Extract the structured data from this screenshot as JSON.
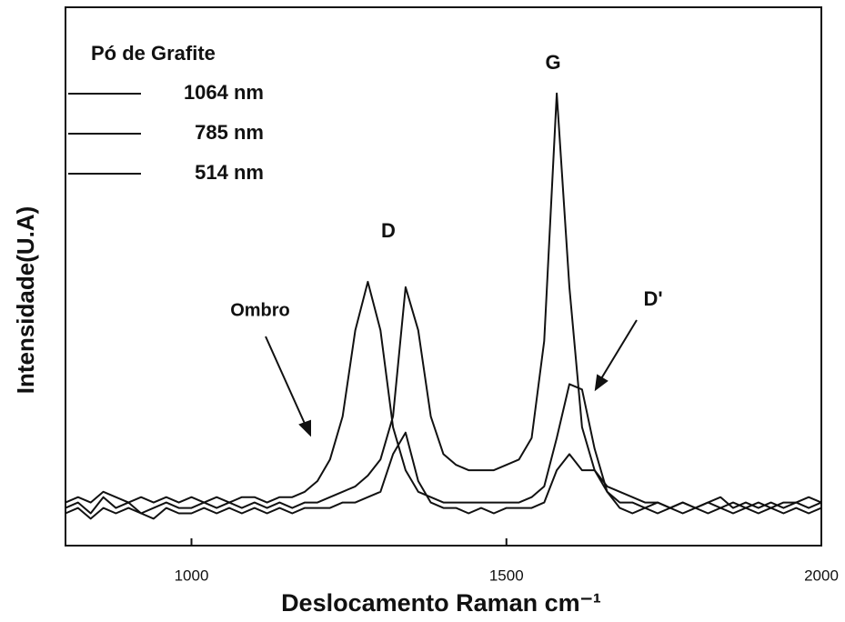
{
  "chart_data": {
    "type": "line",
    "xlabel": "Deslocamento Raman cm⁻¹",
    "ylabel": "Intensidade(U.A)",
    "legend_title": "Pó de Grafite",
    "annotations": [
      "G",
      "D",
      "D'",
      "Ombro"
    ],
    "x": [
      800,
      820,
      840,
      860,
      880,
      900,
      920,
      940,
      960,
      980,
      1000,
      1020,
      1040,
      1060,
      1080,
      1100,
      1120,
      1140,
      1160,
      1180,
      1200,
      1220,
      1240,
      1260,
      1280,
      1300,
      1320,
      1340,
      1360,
      1380,
      1400,
      1420,
      1440,
      1460,
      1480,
      1500,
      1520,
      1540,
      1560,
      1580,
      1600,
      1620,
      1640,
      1660,
      1680,
      1700,
      1720,
      1740,
      1760,
      1780,
      1800,
      1820,
      1840,
      1860,
      1880,
      1900,
      1920,
      1940,
      1960,
      1980,
      2000
    ],
    "series": [
      {
        "name": "1064 nm",
        "color": "#111111",
        "values": [
          8,
          9,
          8,
          10,
          9,
          8,
          9,
          8,
          9,
          8,
          9,
          8,
          9,
          8,
          9,
          9,
          8,
          9,
          9,
          10,
          12,
          16,
          24,
          40,
          49,
          40,
          22,
          14,
          10,
          9,
          8,
          8,
          8,
          8,
          8,
          8,
          8,
          9,
          11,
          20,
          30,
          29,
          18,
          10,
          8,
          8,
          7,
          8,
          7,
          8,
          7,
          8,
          7,
          8,
          7,
          8,
          7,
          8,
          8,
          7,
          8
        ]
      },
      {
        "name": "785 nm",
        "color": "#111111",
        "values": [
          7,
          8,
          6,
          9,
          7,
          8,
          6,
          7,
          8,
          7,
          7,
          8,
          7,
          8,
          7,
          8,
          7,
          8,
          7,
          8,
          8,
          9,
          10,
          11,
          13,
          16,
          24,
          48,
          40,
          24,
          17,
          15,
          14,
          14,
          14,
          15,
          16,
          20,
          38,
          84,
          48,
          22,
          14,
          11,
          10,
          9,
          8,
          8,
          7,
          8,
          7,
          8,
          9,
          7,
          8,
          7,
          8,
          7,
          8,
          9,
          8
        ]
      },
      {
        "name": "514 nm",
        "color": "#111111",
        "values": [
          6,
          7,
          5,
          7,
          6,
          7,
          6,
          5,
          7,
          6,
          6,
          7,
          6,
          7,
          6,
          7,
          6,
          7,
          6,
          7,
          7,
          7,
          8,
          8,
          9,
          10,
          17,
          21,
          12,
          8,
          7,
          7,
          6,
          7,
          6,
          7,
          7,
          7,
          8,
          14,
          17,
          14,
          14,
          10,
          7,
          6,
          7,
          6,
          7,
          6,
          7,
          6,
          7,
          6,
          7,
          6,
          7,
          6,
          7,
          6,
          7
        ]
      }
    ],
    "xlim": [
      800,
      2000
    ],
    "xticks": [
      1000,
      1500,
      2000
    ],
    "ylim": [
      0,
      100
    ]
  }
}
